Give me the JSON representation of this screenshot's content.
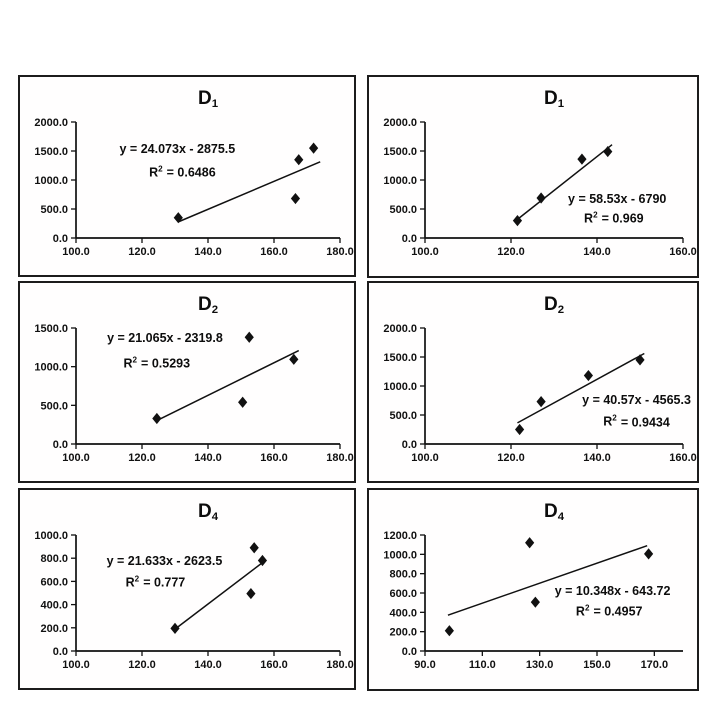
{
  "page": {
    "background": "#ffffff",
    "ink": "#111111"
  },
  "chart_data": [
    {
      "type": "scatter",
      "title": "D1",
      "title_base": "D",
      "title_sub": "1",
      "equation": "y = 24.073x - 2875.5",
      "r2_base": "R",
      "r2_sup": "2",
      "r2_value": "= 0.6486",
      "r2": 0.6486,
      "xlim": [
        100,
        180
      ],
      "xticks": [
        100,
        120,
        140,
        160,
        180
      ],
      "ylim": [
        0,
        2000
      ],
      "yticks": [
        0,
        500,
        1000,
        1500,
        2000
      ],
      "tick_decimals": 1,
      "grid": false,
      "marker": "diamond",
      "color": "#111111",
      "points": [
        [
          131,
          350
        ],
        [
          166.5,
          680
        ],
        [
          167.5,
          1350
        ],
        [
          172,
          1550
        ]
      ],
      "trendline": {
        "slope": 24.073,
        "intercept": -2875.5,
        "x_start": 131,
        "x_end": 174
      },
      "label_pos": {
        "equation": [
          0.384,
          0.229
        ],
        "r2": [
          0.403,
          0.432
        ]
      }
    },
    {
      "type": "scatter",
      "title": "D1",
      "title_base": "D",
      "title_sub": "1",
      "equation": "y = 58.53x - 6790",
      "r2_base": "R",
      "r2_sup": "2",
      "r2_value": "= 0.969",
      "r2": 0.969,
      "xlim": [
        100,
        160
      ],
      "xticks": [
        100,
        120,
        140,
        160
      ],
      "ylim": [
        0,
        2000
      ],
      "yticks": [
        0,
        500,
        1000,
        1500,
        2000
      ],
      "tick_decimals": 1,
      "grid": false,
      "marker": "diamond",
      "color": "#111111",
      "points": [
        [
          121.5,
          300
        ],
        [
          127,
          690
        ],
        [
          136.5,
          1360
        ],
        [
          142.5,
          1490
        ]
      ],
      "trendline": {
        "slope": 58.53,
        "intercept": -6790,
        "x_start": 121.5,
        "x_end": 143.5
      },
      "label_pos": {
        "equation": [
          0.745,
          0.664
        ],
        "r2": [
          0.732,
          0.828
        ]
      }
    },
    {
      "type": "scatter",
      "title": "D2",
      "title_base": "D",
      "title_sub": "2",
      "equation": "y = 21.065x - 2319.8",
      "r2_base": "R",
      "r2_sup": "2",
      "r2_value": "= 0.5293",
      "r2": 0.5293,
      "xlim": [
        100,
        180
      ],
      "xticks": [
        100,
        120,
        140,
        160,
        180
      ],
      "ylim": [
        0,
        1500
      ],
      "yticks": [
        0,
        500,
        1000,
        1500
      ],
      "tick_decimals": 1,
      "grid": false,
      "marker": "diamond",
      "color": "#111111",
      "points": [
        [
          124.5,
          330
        ],
        [
          150.5,
          540
        ],
        [
          152.5,
          1380
        ],
        [
          166,
          1095
        ]
      ],
      "trendline": {
        "slope": 21.065,
        "intercept": -2319.8,
        "x_start": 124.5,
        "x_end": 167.5
      },
      "label_pos": {
        "equation": [
          0.337,
          0.089
        ],
        "r2": [
          0.306,
          0.304
        ]
      }
    },
    {
      "type": "scatter",
      "title": "D2",
      "title_base": "D",
      "title_sub": "2",
      "equation": "y = 40.57x - 4565.3",
      "r2_base": "R",
      "r2_sup": "2",
      "r2_value": "= 0.9434",
      "r2": 0.9434,
      "xlim": [
        100,
        160
      ],
      "xticks": [
        100,
        120,
        140,
        160
      ],
      "ylim": [
        0,
        2000
      ],
      "yticks": [
        0,
        500,
        1000,
        1500,
        2000
      ],
      "tick_decimals": 1,
      "grid": false,
      "marker": "diamond",
      "color": "#111111",
      "points": [
        [
          122,
          250
        ],
        [
          127,
          730
        ],
        [
          138,
          1180
        ],
        [
          150,
          1450
        ]
      ],
      "trendline": {
        "slope": 40.57,
        "intercept": -4565.3,
        "x_start": 121.5,
        "x_end": 151
      },
      "label_pos": {
        "equation": [
          0.82,
          0.618
        ],
        "r2": [
          0.82,
          0.806
        ]
      }
    },
    {
      "type": "scatter",
      "title": "D4",
      "title_base": "D",
      "title_sub": "4",
      "equation": "y = 21.633x - 2623.5",
      "r2_base": "R",
      "r2_sup": "2",
      "r2_value": "= 0.777",
      "r2": 0.777,
      "xlim": [
        100,
        180
      ],
      "xticks": [
        100,
        120,
        140,
        160,
        180
      ],
      "ylim": [
        0,
        1000
      ],
      "yticks": [
        0,
        200,
        400,
        600,
        800,
        1000
      ],
      "tick_decimals": 1,
      "grid": false,
      "marker": "diamond",
      "color": "#111111",
      "points": [
        [
          130,
          195
        ],
        [
          153,
          495
        ],
        [
          154,
          890
        ],
        [
          156.5,
          780
        ]
      ],
      "trendline": {
        "slope": 21.633,
        "intercept": -2623.5,
        "x_start": 130,
        "x_end": 157
      },
      "label_pos": {
        "equation": [
          0.335,
          0.22
        ],
        "r2": [
          0.301,
          0.408
        ]
      }
    },
    {
      "type": "scatter",
      "title": "D4",
      "title_base": "D",
      "title_sub": "4",
      "equation": "y = 10.348x - 643.72",
      "r2_base": "R",
      "r2_sup": "2",
      "r2_value": "= 0.4957",
      "r2": 0.4957,
      "xlim": [
        90,
        180
      ],
      "xticks": [
        90,
        110,
        130,
        150,
        170
      ],
      "ylim": [
        0,
        1200
      ],
      "yticks": [
        0,
        200,
        400,
        600,
        800,
        1000,
        1200
      ],
      "tick_decimals": 1,
      "grid": false,
      "marker": "diamond",
      "color": "#111111",
      "points": [
        [
          98.5,
          210
        ],
        [
          126.5,
          1120
        ],
        [
          128.5,
          505
        ],
        [
          168,
          1005
        ]
      ],
      "trendline": {
        "slope": 10.348,
        "intercept": -643.72,
        "x_start": 98,
        "x_end": 167.5
      },
      "label_pos": {
        "equation": [
          0.727,
          0.48
        ],
        "r2": [
          0.714,
          0.657
        ]
      }
    }
  ]
}
